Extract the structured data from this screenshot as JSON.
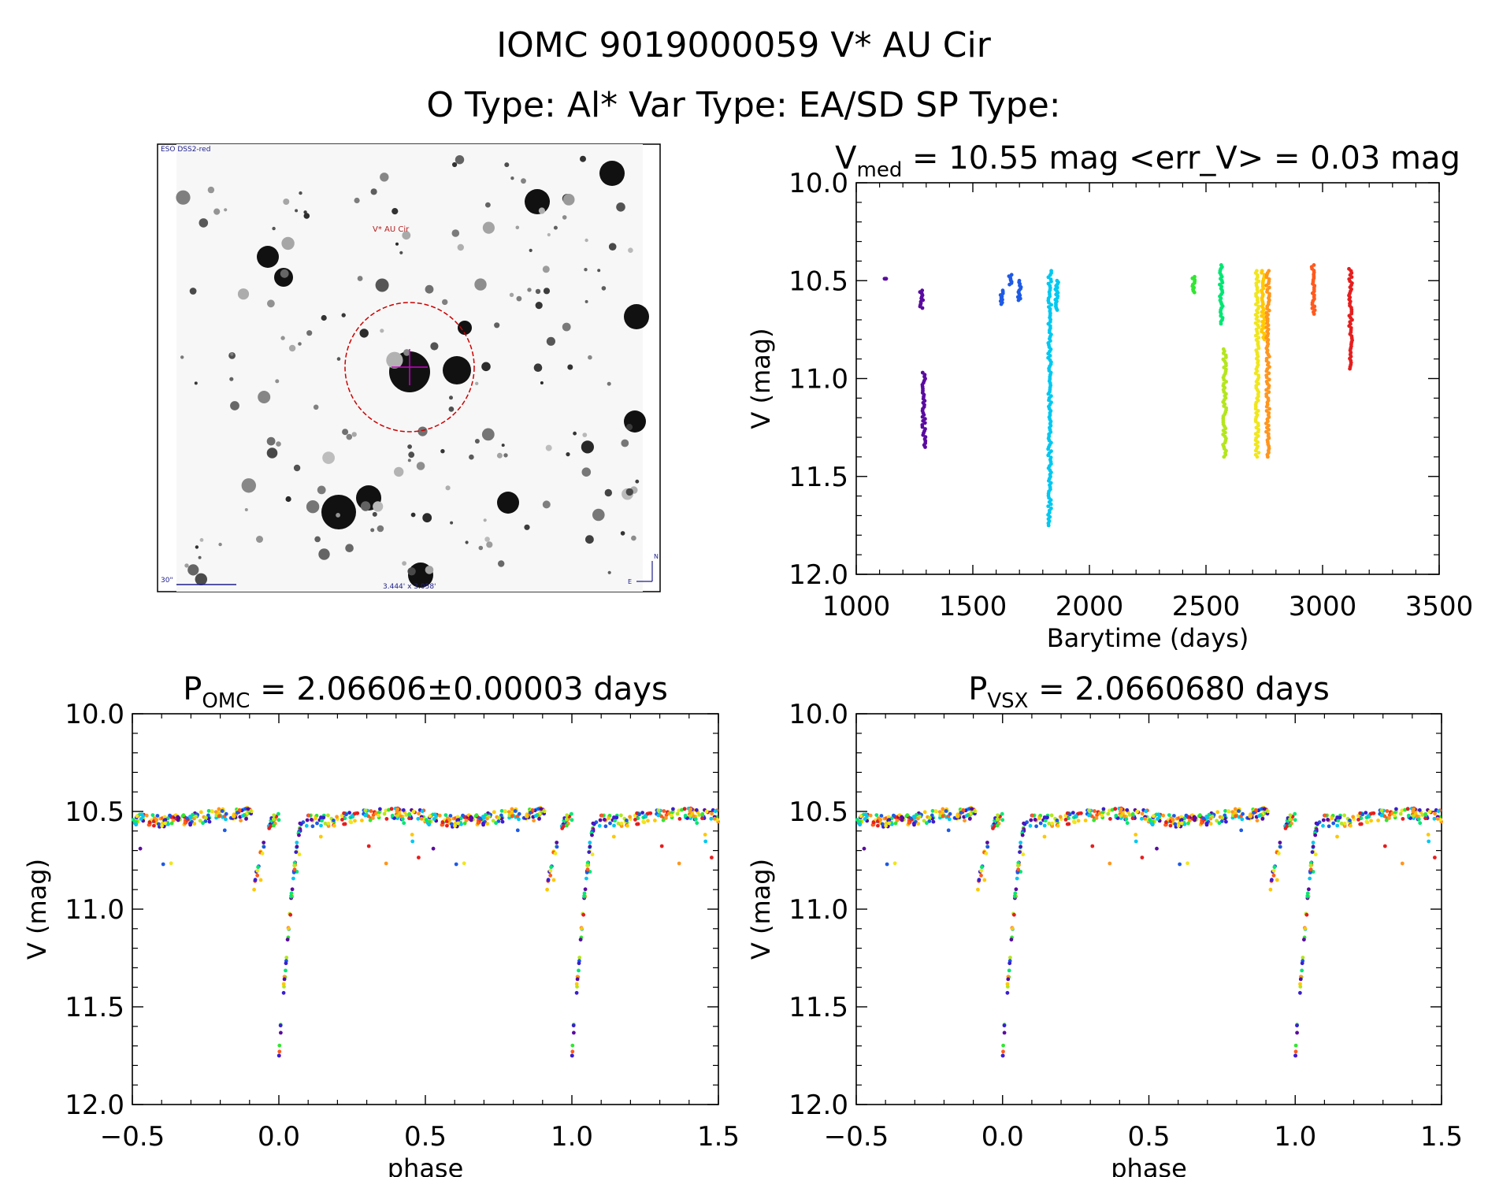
{
  "header": {
    "title_line": "IOMC 9019000059   V* AU Cir",
    "subtitle_line": "O Type: Al*  Var Type: EA/SD  SP Type:"
  },
  "finder_chart": {
    "survey_label": "ESO DSS2-red",
    "target_label": "V* AU Cir",
    "scale_label": "30\"",
    "fov_label": "3.444' x 3.058'",
    "north_label": "N",
    "east_label": "E"
  },
  "colors": {
    "rainbow": [
      "#5a0aa0",
      "#3a1ed0",
      "#1e5ae6",
      "#00c8f0",
      "#00e673",
      "#32e632",
      "#b4e61e",
      "#f0e61e",
      "#ffc800",
      "#ff961e",
      "#ff5a1e",
      "#e61e1e"
    ],
    "axes": "#000000",
    "marker_circle": "#cc0000",
    "marker_cross": "#cc00cc"
  },
  "chart_data": [
    {
      "type": "scatter",
      "id": "light-curve",
      "title_main": "V",
      "title_sub": "med",
      "title_rest": " = 10.55 mag <err_V> = 0.03 mag",
      "xlabel": "Barytime (days)",
      "ylabel": "V (mag)",
      "xlim": [
        1000,
        3500
      ],
      "ylim": [
        12.0,
        10.0
      ],
      "y_inverted": true,
      "xticks": [
        "1000",
        "1500",
        "2000",
        "2500",
        "3000",
        "3500"
      ],
      "yticks": [
        "10.0",
        "10.5",
        "11.0",
        "11.5",
        "12.0"
      ],
      "groups": [
        {
          "t": 1125,
          "v_min": 10.49,
          "v_max": 10.49,
          "color_index": 0
        },
        {
          "t": 1280,
          "v_min": 10.55,
          "v_max": 10.64,
          "color_index": 0
        },
        {
          "t": 1290,
          "v_min": 10.97,
          "v_max": 11.35,
          "color_index": 0
        },
        {
          "t": 1625,
          "v_min": 10.55,
          "v_max": 10.62,
          "color_index": 2
        },
        {
          "t": 1660,
          "v_min": 10.47,
          "v_max": 10.52,
          "color_index": 2
        },
        {
          "t": 1700,
          "v_min": 10.5,
          "v_max": 10.6,
          "color_index": 2
        },
        {
          "t": 1830,
          "v_min": 10.45,
          "v_max": 11.75,
          "color_index": 3
        },
        {
          "t": 1860,
          "v_min": 10.5,
          "v_max": 10.65,
          "color_index": 3
        },
        {
          "t": 2445,
          "v_min": 10.48,
          "v_max": 10.56,
          "color_index": 5
        },
        {
          "t": 2565,
          "v_min": 10.42,
          "v_max": 10.72,
          "color_index": 4
        },
        {
          "t": 2580,
          "v_min": 10.85,
          "v_max": 11.4,
          "color_index": 6
        },
        {
          "t": 2720,
          "v_min": 10.45,
          "v_max": 11.4,
          "color_index": 7
        },
        {
          "t": 2745,
          "v_min": 10.45,
          "v_max": 10.8,
          "color_index": 8
        },
        {
          "t": 2765,
          "v_min": 10.45,
          "v_max": 11.4,
          "color_index": 9
        },
        {
          "t": 2960,
          "v_min": 10.42,
          "v_max": 10.67,
          "color_index": 10
        },
        {
          "t": 3120,
          "v_min": 10.44,
          "v_max": 10.95,
          "color_index": 11
        }
      ]
    },
    {
      "type": "scatter",
      "id": "phase-omc",
      "title_main": "P",
      "title_sub": "OMC",
      "title_rest": " = 2.06606±0.00003 days",
      "xlabel": "phase",
      "ylabel": "V (mag)",
      "xlim": [
        -0.5,
        1.5
      ],
      "ylim": [
        12.0,
        10.0
      ],
      "y_inverted": true,
      "xticks": [
        "−0.5",
        "0.0",
        "0.5",
        "1.0",
        "1.5"
      ],
      "yticks": [
        "10.0",
        "10.5",
        "11.0",
        "11.5",
        "12.0"
      ],
      "period_days": 2.06606,
      "curve": {
        "out_of_eclipse_mag": 10.53,
        "primary_depth_mag": 1.2,
        "primary_center_phase": 0.0,
        "pre_eclipse_dip_phase": -0.05,
        "pre_eclipse_dip_mag": 10.95,
        "min_mag": 11.75
      }
    },
    {
      "type": "scatter",
      "id": "phase-vsx",
      "title_main": "P",
      "title_sub": "VSX",
      "title_rest": " = 2.0660680 days",
      "xlabel": "phase",
      "ylabel": "V (mag)",
      "xlim": [
        -0.5,
        1.5
      ],
      "ylim": [
        12.0,
        10.0
      ],
      "y_inverted": true,
      "xticks": [
        "−0.5",
        "0.0",
        "0.5",
        "1.0",
        "1.5"
      ],
      "yticks": [
        "10.0",
        "10.5",
        "11.0",
        "11.5",
        "12.0"
      ],
      "period_days": 2.066068,
      "curve": {
        "out_of_eclipse_mag": 10.53,
        "primary_depth_mag": 1.2,
        "primary_center_phase": 0.0,
        "pre_eclipse_dip_phase": -0.05,
        "pre_eclipse_dip_mag": 10.95,
        "min_mag": 11.75
      }
    }
  ]
}
